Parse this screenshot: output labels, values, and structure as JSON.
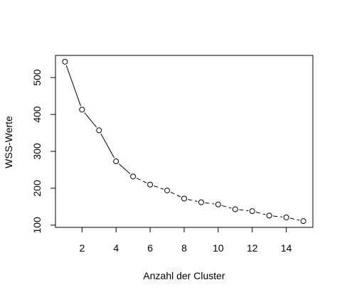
{
  "chart_data": {
    "type": "line",
    "title": "",
    "xlabel": "Anzahl der Cluster",
    "ylabel": "WSS-Werte",
    "x": [
      1,
      2,
      3,
      4,
      5,
      6,
      7,
      8,
      9,
      10,
      11,
      12,
      13,
      14,
      15
    ],
    "series": [
      {
        "values": [
          543,
          413,
          357,
          273,
          232,
          210,
          194,
          172,
          162,
          156,
          143,
          138,
          126,
          121,
          111
        ]
      }
    ],
    "xlim": [
      0.44,
      15.56
    ],
    "ylim": [
      94,
      560
    ],
    "xticks": [
      2,
      4,
      6,
      8,
      10,
      12,
      14
    ],
    "xtick_labels": [
      "2",
      "4",
      "6",
      "8",
      "10",
      "12",
      "14"
    ],
    "yticks": [
      100,
      200,
      300,
      400,
      500
    ],
    "ytick_labels": [
      "100",
      "200",
      "300",
      "400",
      "500"
    ],
    "line_style": {
      "solid_until_x": 5,
      "dashed_after": true
    },
    "marker": "open-circle",
    "grid": false,
    "legend": "none"
  }
}
